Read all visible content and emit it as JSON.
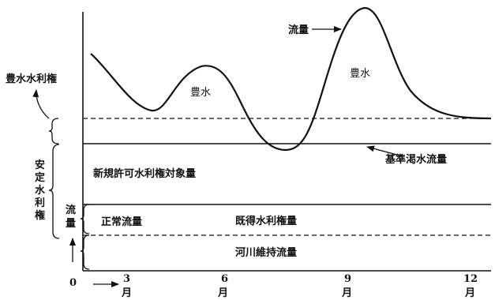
{
  "labels": {
    "flow": "流量",
    "abundant_water_1": "豊水",
    "abundant_water_2": "豊水",
    "abundant_water_right": "豊水水利権",
    "stable_water_right": [
      "安",
      "定",
      "水",
      "利",
      "権"
    ],
    "flow_vertical": [
      "流",
      "量"
    ],
    "new_permit": "新規許可水利権対象量",
    "normal_flow": "正常流量",
    "existing_right": "既得水利権量",
    "river_maintenance": "河川維持流量",
    "base_drought_flow": "基準渇水流量"
  },
  "axis": {
    "origin": "0",
    "month_unit": "月",
    "ticks": [
      "3",
      "6",
      "9",
      "12"
    ]
  },
  "colors": {
    "ink": "#111111",
    "background": "#ffffff"
  }
}
